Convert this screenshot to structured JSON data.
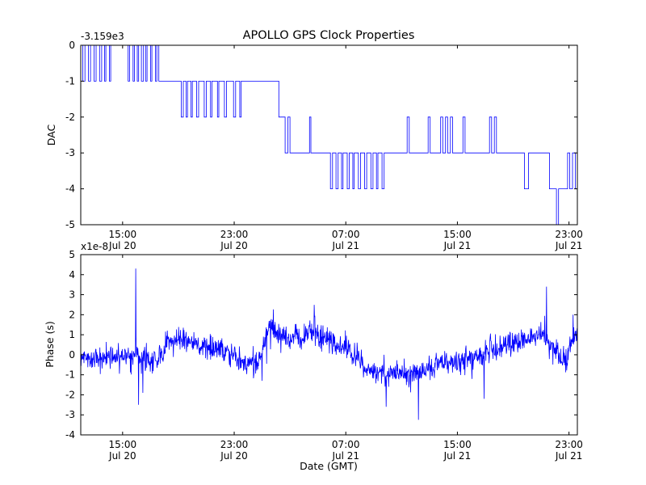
{
  "figure": {
    "background": "#ffffff",
    "line_color": "#0000ff",
    "axes_color": "#000000"
  },
  "chart_data": [
    {
      "type": "line",
      "series_type": "step",
      "title": "APOLLO GPS Clock Properties",
      "ylabel": "DAC",
      "offset_text": "-3.159e3",
      "xlim": [
        0,
        35.6
      ],
      "ylim": [
        -5,
        0
      ],
      "yticks": [
        0,
        -1,
        -2,
        -3,
        -4,
        -5
      ],
      "xticks": [
        {
          "x": 3,
          "time": "15:00",
          "date": "Jul 20"
        },
        {
          "x": 11,
          "time": "23:00",
          "date": "Jul 20"
        },
        {
          "x": 19,
          "time": "07:00",
          "date": "Jul 21"
        },
        {
          "x": 27,
          "time": "15:00",
          "date": "Jul 21"
        },
        {
          "x": 35,
          "time": "23:00",
          "date": "Jul 21"
        }
      ],
      "points": [
        [
          0,
          0
        ],
        [
          0.15,
          -1
        ],
        [
          0.3,
          0
        ],
        [
          0.55,
          -1
        ],
        [
          0.7,
          0
        ],
        [
          0.95,
          -1
        ],
        [
          1.1,
          0
        ],
        [
          1.35,
          -1
        ],
        [
          1.5,
          0
        ],
        [
          1.7,
          -1
        ],
        [
          1.8,
          0
        ],
        [
          2.05,
          -1
        ],
        [
          2.15,
          0
        ],
        [
          3.4,
          -1
        ],
        [
          3.5,
          0
        ],
        [
          3.75,
          -1
        ],
        [
          3.85,
          0
        ],
        [
          4.05,
          -1
        ],
        [
          4.15,
          0
        ],
        [
          4.35,
          -1
        ],
        [
          4.5,
          0
        ],
        [
          4.65,
          -1
        ],
        [
          4.75,
          0
        ],
        [
          5.0,
          -1
        ],
        [
          5.1,
          0
        ],
        [
          5.35,
          -1
        ],
        [
          5.45,
          0
        ],
        [
          5.6,
          -1
        ],
        [
          7.2,
          -2
        ],
        [
          7.35,
          -1
        ],
        [
          7.55,
          -2
        ],
        [
          7.65,
          -1
        ],
        [
          7.9,
          -2
        ],
        [
          8.0,
          -1
        ],
        [
          8.3,
          -2
        ],
        [
          8.45,
          -1
        ],
        [
          8.85,
          -2
        ],
        [
          9.0,
          -1
        ],
        [
          9.3,
          -2
        ],
        [
          9.4,
          -1
        ],
        [
          9.8,
          -2
        ],
        [
          9.9,
          -1
        ],
        [
          10.3,
          -2
        ],
        [
          10.45,
          -1
        ],
        [
          10.95,
          -2
        ],
        [
          11.1,
          -1
        ],
        [
          11.4,
          -2
        ],
        [
          11.5,
          -1
        ],
        [
          14.2,
          -2
        ],
        [
          14.65,
          -3
        ],
        [
          14.85,
          -2
        ],
        [
          15.0,
          -3
        ],
        [
          16.4,
          -2
        ],
        [
          16.5,
          -3
        ],
        [
          17.9,
          -4
        ],
        [
          18.05,
          -3
        ],
        [
          18.3,
          -4
        ],
        [
          18.45,
          -3
        ],
        [
          18.7,
          -4
        ],
        [
          18.8,
          -3
        ],
        [
          19.1,
          -4
        ],
        [
          19.25,
          -3
        ],
        [
          19.5,
          -4
        ],
        [
          19.6,
          -3
        ],
        [
          19.9,
          -4
        ],
        [
          20.05,
          -3
        ],
        [
          20.35,
          -4
        ],
        [
          20.5,
          -3
        ],
        [
          20.8,
          -4
        ],
        [
          20.95,
          -3
        ],
        [
          21.2,
          -4
        ],
        [
          21.3,
          -3
        ],
        [
          21.6,
          -4
        ],
        [
          21.75,
          -3
        ],
        [
          23.4,
          -2
        ],
        [
          23.55,
          -3
        ],
        [
          24.9,
          -2
        ],
        [
          25.05,
          -3
        ],
        [
          25.8,
          -2
        ],
        [
          25.95,
          -3
        ],
        [
          26.15,
          -2
        ],
        [
          26.3,
          -3
        ],
        [
          26.5,
          -2
        ],
        [
          26.65,
          -3
        ],
        [
          27.4,
          -2
        ],
        [
          27.55,
          -3
        ],
        [
          29.3,
          -2
        ],
        [
          29.45,
          -3
        ],
        [
          29.65,
          -2
        ],
        [
          29.8,
          -3
        ],
        [
          31.8,
          -4
        ],
        [
          32.1,
          -3
        ],
        [
          33.6,
          -4
        ],
        [
          34.1,
          -5
        ],
        [
          34.25,
          -4
        ],
        [
          34.9,
          -3
        ],
        [
          35.05,
          -4
        ],
        [
          35.25,
          -3
        ],
        [
          35.45,
          -4
        ]
      ]
    },
    {
      "type": "line",
      "series_type": "noisy",
      "ylabel": "Phase (s)",
      "xlabel": "Date (GMT)",
      "offset_text": "x1e-8",
      "xlim": [
        0,
        35.6
      ],
      "ylim": [
        -4,
        5
      ],
      "yticks": [
        5,
        4,
        3,
        2,
        1,
        0,
        -1,
        -2,
        -3,
        -4
      ],
      "xticks": [
        {
          "x": 3,
          "time": "15:00",
          "date": "Jul 20"
        },
        {
          "x": 11,
          "time": "23:00",
          "date": "Jul 20"
        },
        {
          "x": 19,
          "time": "07:00",
          "date": "Jul 21"
        },
        {
          "x": 27,
          "time": "15:00",
          "date": "Jul 21"
        },
        {
          "x": 35,
          "time": "23:00",
          "date": "Jul 21"
        }
      ],
      "baseline": [
        [
          0,
          -0.1
        ],
        [
          0.5,
          -0.3
        ],
        [
          1,
          -0.15
        ],
        [
          1.5,
          -0.35
        ],
        [
          2,
          -0.1
        ],
        [
          2.5,
          -0.25
        ],
        [
          3,
          -0.15
        ],
        [
          3.5,
          -0.1
        ],
        [
          3.9,
          0.1
        ],
        [
          4.2,
          -0.3
        ],
        [
          4.6,
          -0.2
        ],
        [
          5,
          -0.35
        ],
        [
          5.5,
          -0.1
        ],
        [
          6,
          0.3
        ],
        [
          6.3,
          0.9
        ],
        [
          6.6,
          0.6
        ],
        [
          7,
          0.75
        ],
        [
          7.5,
          0.55
        ],
        [
          8,
          0.65
        ],
        [
          8.5,
          0.45
        ],
        [
          9,
          0.5
        ],
        [
          9.5,
          0.3
        ],
        [
          10,
          0.25
        ],
        [
          10.5,
          0.05
        ],
        [
          11,
          -0.1
        ],
        [
          11.5,
          -0.3
        ],
        [
          12,
          -0.55
        ],
        [
          12.5,
          -0.6
        ],
        [
          12.8,
          -0.3
        ],
        [
          13.1,
          0.6
        ],
        [
          13.4,
          1.2
        ],
        [
          13.7,
          1.5
        ],
        [
          14,
          1.3
        ],
        [
          14.3,
          1.1
        ],
        [
          14.6,
          0.95
        ],
        [
          15,
          0.8
        ],
        [
          15.4,
          1.0
        ],
        [
          15.8,
          0.85
        ],
        [
          16.2,
          1.1
        ],
        [
          16.6,
          1.2
        ],
        [
          17,
          1.0
        ],
        [
          17.4,
          0.85
        ],
        [
          17.8,
          0.7
        ],
        [
          18.2,
          0.55
        ],
        [
          18.6,
          0.4
        ],
        [
          19,
          0.3
        ],
        [
          19.4,
          0.15
        ],
        [
          19.8,
          -0.1
        ],
        [
          20.2,
          -0.5
        ],
        [
          20.6,
          -0.75
        ],
        [
          21,
          -0.85
        ],
        [
          21.5,
          -0.8
        ],
        [
          22,
          -0.95
        ],
        [
          22.5,
          -0.85
        ],
        [
          23,
          -0.9
        ],
        [
          23.5,
          -1.0
        ],
        [
          24,
          -0.8
        ],
        [
          24.5,
          -0.85
        ],
        [
          25,
          -0.7
        ],
        [
          25.5,
          -0.55
        ],
        [
          26,
          -0.4
        ],
        [
          26.5,
          -0.45
        ],
        [
          27,
          -0.25
        ],
        [
          27.5,
          -0.3
        ],
        [
          28,
          -0.1
        ],
        [
          28.5,
          -0.15
        ],
        [
          29,
          0.15
        ],
        [
          29.4,
          0.35
        ],
        [
          29.8,
          0.2
        ],
        [
          30.2,
          0.45
        ],
        [
          30.6,
          0.6
        ],
        [
          31,
          0.5
        ],
        [
          31.4,
          0.7
        ],
        [
          31.8,
          0.85
        ],
        [
          32.2,
          0.75
        ],
        [
          32.6,
          1.0
        ],
        [
          33,
          1.2
        ],
        [
          33.3,
          0.9
        ],
        [
          33.6,
          0.5
        ],
        [
          34,
          0.15
        ],
        [
          34.4,
          -0.2
        ],
        [
          34.8,
          -0.1
        ],
        [
          35.1,
          0.4
        ],
        [
          35.4,
          0.9
        ],
        [
          35.6,
          0.7
        ]
      ],
      "spikes": [
        [
          3.95,
          4.3
        ],
        [
          4.15,
          -2.5
        ],
        [
          4.45,
          -1.9
        ],
        [
          13.0,
          -1.3
        ],
        [
          21.9,
          -2.6
        ],
        [
          24.2,
          -3.25
        ],
        [
          28.9,
          -2.2
        ],
        [
          33.4,
          3.4
        ],
        [
          35.3,
          2.0
        ]
      ],
      "noise": {
        "seed": 77,
        "samples": 1400,
        "amplitude": 1.0,
        "burst_prob": 0.05,
        "burst_scale": 2.2
      }
    }
  ]
}
